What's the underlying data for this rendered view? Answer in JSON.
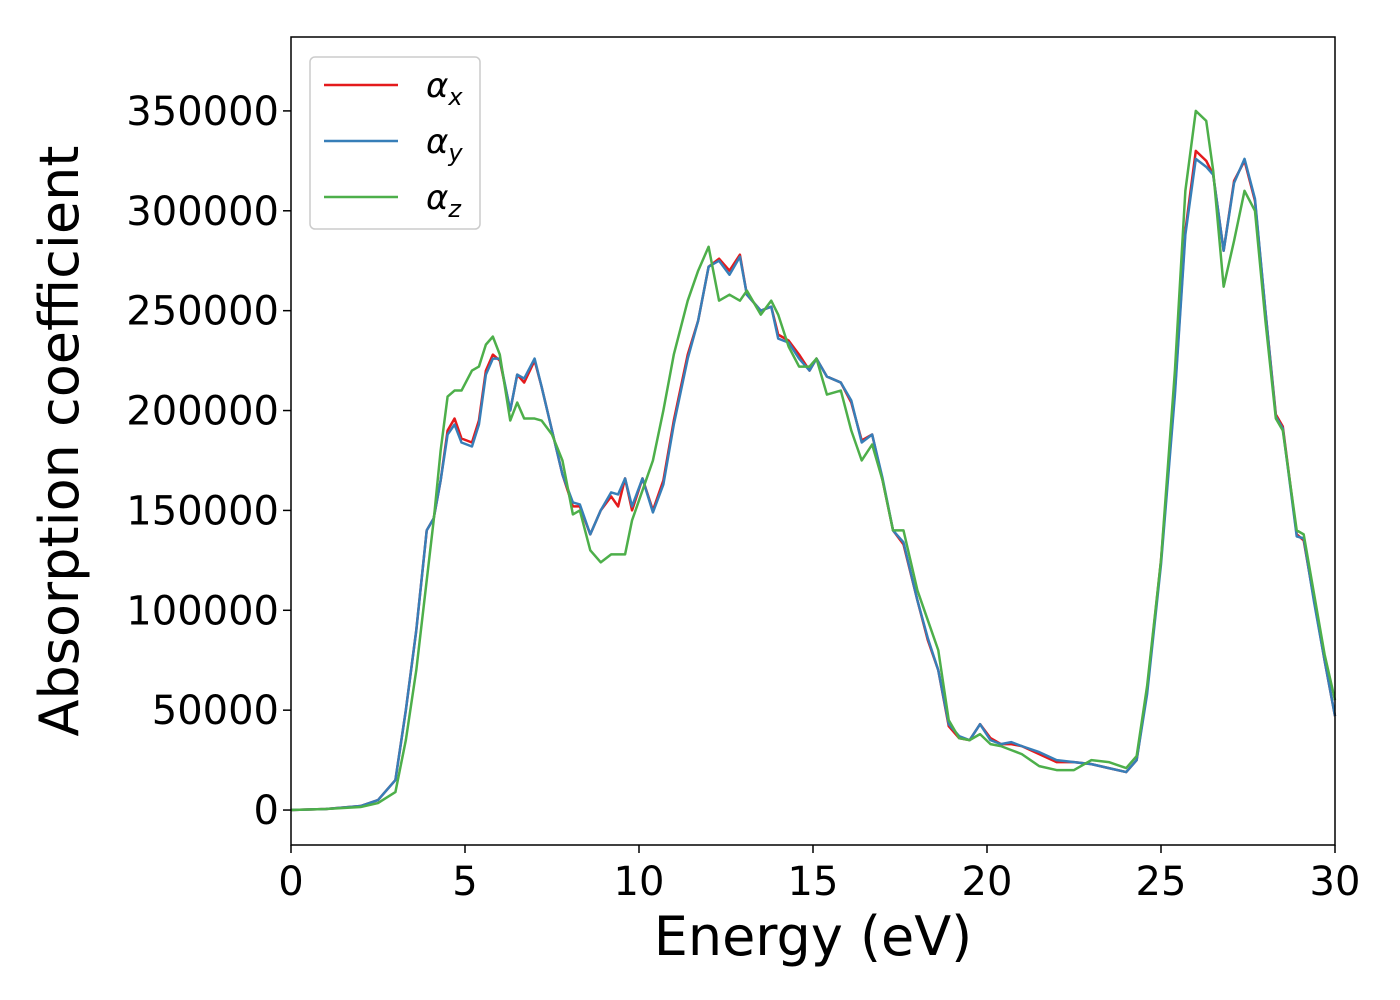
{
  "chart_data": {
    "type": "line",
    "xlabel": "Energy (eV)",
    "ylabel": "Absorption coefficient",
    "x": [
      0,
      1,
      2,
      2.5,
      3,
      3.3,
      3.6,
      3.9,
      4.1,
      4.3,
      4.5,
      4.7,
      4.9,
      5.2,
      5.4,
      5.6,
      5.8,
      6.0,
      6.3,
      6.5,
      6.7,
      7.0,
      7.2,
      7.5,
      7.8,
      8.1,
      8.3,
      8.6,
      8.9,
      9.2,
      9.4,
      9.6,
      9.8,
      10.1,
      10.4,
      10.7,
      11.0,
      11.4,
      11.7,
      12.0,
      12.3,
      12.6,
      12.9,
      13.1,
      13.5,
      13.8,
      14.0,
      14.3,
      14.6,
      14.9,
      15.1,
      15.4,
      15.8,
      16.1,
      16.4,
      16.7,
      17.0,
      17.3,
      17.6,
      18.0,
      18.3,
      18.6,
      18.9,
      19.2,
      19.5,
      19.8,
      20.1,
      20.4,
      20.7,
      21.0,
      21.5,
      22.0,
      22.5,
      23.0,
      23.5,
      24.0,
      24.3,
      24.6,
      25.0,
      25.4,
      25.7,
      26.0,
      26.3,
      26.5,
      26.8,
      27.1,
      27.4,
      27.7,
      28.0,
      28.3,
      28.5,
      28.9,
      29.1,
      29.4,
      29.7,
      30
    ],
    "series": [
      {
        "name": "αx",
        "color": "#e41a1c",
        "values": [
          0,
          500,
          2000,
          5000,
          15000,
          50000,
          90000,
          140000,
          146000,
          165000,
          190000,
          196000,
          186000,
          184000,
          195000,
          220000,
          228000,
          225000,
          200000,
          218000,
          214000,
          225000,
          212000,
          190000,
          168000,
          152000,
          152000,
          138000,
          150000,
          157000,
          152000,
          166000,
          150000,
          166000,
          150000,
          165000,
          195000,
          228000,
          245000,
          272000,
          276000,
          270000,
          278000,
          258000,
          250000,
          252000,
          238000,
          235000,
          228000,
          220000,
          226000,
          217000,
          214000,
          204000,
          185000,
          188000,
          165000,
          140000,
          133000,
          105000,
          85000,
          70000,
          42000,
          36000,
          35000,
          43000,
          36000,
          33000,
          33000,
          32000,
          28000,
          24000,
          24000,
          23000,
          21000,
          19000,
          25000,
          60000,
          125000,
          210000,
          290000,
          330000,
          325000,
          318000,
          280000,
          315000,
          325000,
          305000,
          250000,
          198000,
          192000,
          138000,
          135000,
          105000,
          75000,
          47000
        ]
      },
      {
        "name": "αy",
        "color": "#377eb8",
        "values": [
          0,
          500,
          2000,
          5000,
          15000,
          50000,
          90000,
          140000,
          146000,
          165000,
          188000,
          193000,
          184000,
          182000,
          193000,
          218000,
          226000,
          226000,
          200000,
          218000,
          216000,
          226000,
          212000,
          190000,
          168000,
          154000,
          153000,
          138000,
          150000,
          159000,
          158000,
          166000,
          152000,
          166000,
          149000,
          163000,
          193000,
          226000,
          245000,
          272000,
          275000,
          268000,
          277000,
          258000,
          250000,
          252000,
          236000,
          234000,
          226000,
          220000,
          226000,
          217000,
          214000,
          205000,
          184000,
          188000,
          166000,
          140000,
          134000,
          105000,
          86000,
          70000,
          43000,
          37000,
          35000,
          43000,
          35000,
          33000,
          34000,
          32000,
          29000,
          25000,
          24000,
          23000,
          21000,
          19000,
          25000,
          58000,
          123000,
          208000,
          288000,
          326000,
          322000,
          318000,
          280000,
          314000,
          326000,
          306000,
          250000,
          197000,
          191000,
          137000,
          136000,
          104000,
          75000,
          47000
        ]
      },
      {
        "name": "αz",
        "color": "#4daf4a",
        "values": [
          0,
          500,
          1500,
          3500,
          9000,
          35000,
          70000,
          115000,
          145000,
          180000,
          207000,
          210000,
          210000,
          220000,
          222000,
          233000,
          237000,
          228000,
          195000,
          204000,
          196000,
          196000,
          195000,
          188000,
          175000,
          148000,
          150000,
          130000,
          124000,
          128000,
          128000,
          128000,
          145000,
          160000,
          175000,
          200000,
          228000,
          255000,
          270000,
          282000,
          255000,
          258000,
          255000,
          260000,
          248000,
          255000,
          248000,
          232000,
          222000,
          222000,
          226000,
          208000,
          210000,
          190000,
          175000,
          183000,
          165000,
          140000,
          140000,
          110000,
          95000,
          80000,
          45000,
          36000,
          35000,
          38000,
          33000,
          32000,
          30000,
          28000,
          22000,
          20000,
          20000,
          25000,
          24000,
          21000,
          27000,
          62000,
          125000,
          220000,
          310000,
          350000,
          345000,
          320000,
          262000,
          285000,
          310000,
          300000,
          245000,
          196000,
          190000,
          140000,
          138000,
          108000,
          78000,
          55000
        ]
      }
    ],
    "xlim": [
      0,
      30
    ],
    "xticks": [
      0,
      5,
      10,
      15,
      20,
      25,
      30
    ],
    "ylim": [
      -17500,
      387000
    ],
    "yticks": [
      0,
      50000,
      100000,
      150000,
      200000,
      250000,
      300000,
      350000
    ],
    "grid": false,
    "legend": "upper left"
  }
}
